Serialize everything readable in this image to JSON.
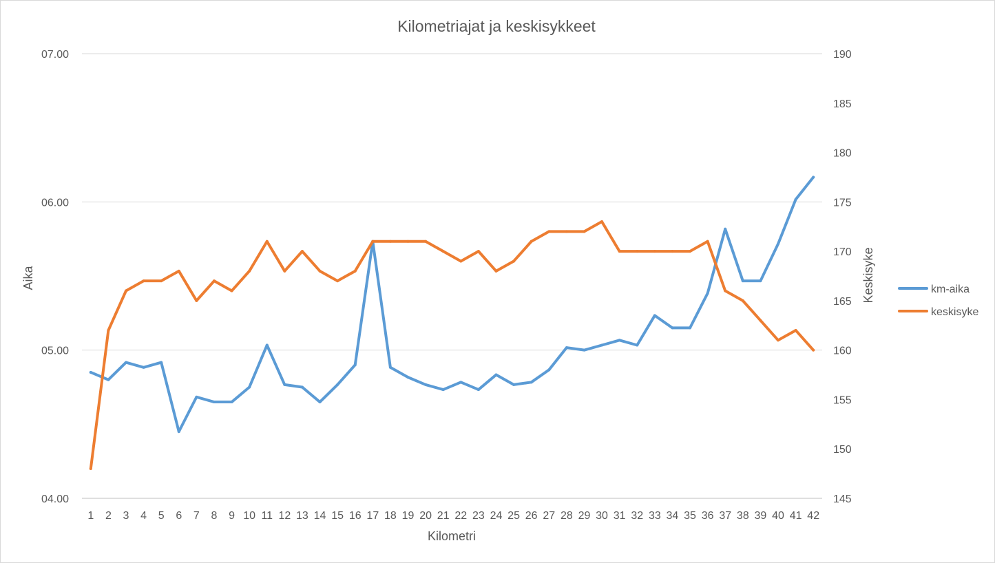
{
  "chart_data": {
    "type": "line",
    "title": "Kilometriajat ja keskisykkeet",
    "xlabel": "Kilometri",
    "ylabel_left": "Aika",
    "ylabel_right": "Keskisyke",
    "categories": [
      1,
      2,
      3,
      4,
      5,
      6,
      7,
      8,
      9,
      10,
      11,
      12,
      13,
      14,
      15,
      16,
      17,
      18,
      19,
      20,
      21,
      22,
      23,
      24,
      25,
      26,
      27,
      28,
      29,
      30,
      31,
      32,
      33,
      34,
      35,
      36,
      37,
      38,
      39,
      40,
      41,
      42
    ],
    "y_left": {
      "min_minutes": 240,
      "max_minutes": 420,
      "ticks": [
        {
          "label": "04.00",
          "minutes": 240
        },
        {
          "label": "05.00",
          "minutes": 300
        },
        {
          "label": "06.00",
          "minutes": 360
        },
        {
          "label": "07.00",
          "minutes": 420
        }
      ]
    },
    "y_right": {
      "min": 145,
      "max": 190,
      "ticks": [
        145,
        150,
        155,
        160,
        165,
        170,
        175,
        180,
        185,
        190
      ]
    },
    "grid": true,
    "legend_position": "right",
    "series": [
      {
        "name": "km-aika",
        "axis": "left",
        "color": "#5b9bd5",
        "unit": "minutes per km",
        "values": [
          291,
          288,
          295,
          293,
          295,
          267,
          281,
          279,
          279,
          285,
          302,
          286,
          285,
          279,
          286,
          294,
          344,
          293,
          289,
          286,
          284,
          287,
          284,
          290,
          286,
          287,
          292,
          301,
          300,
          302,
          304,
          302,
          314,
          309,
          309,
          323,
          349,
          328,
          328,
          343,
          361,
          370
        ]
      },
      {
        "name": "keskisyke",
        "axis": "right",
        "color": "#ed7d31",
        "unit": "bpm",
        "values": [
          148,
          162,
          166,
          167,
          167,
          168,
          165,
          167,
          166,
          168,
          171,
          168,
          170,
          168,
          167,
          168,
          171,
          171,
          171,
          171,
          170,
          169,
          170,
          168,
          169,
          171,
          172,
          172,
          172,
          173,
          170,
          170,
          170,
          170,
          170,
          171,
          166,
          165,
          163,
          161,
          162,
          160
        ]
      }
    ]
  }
}
